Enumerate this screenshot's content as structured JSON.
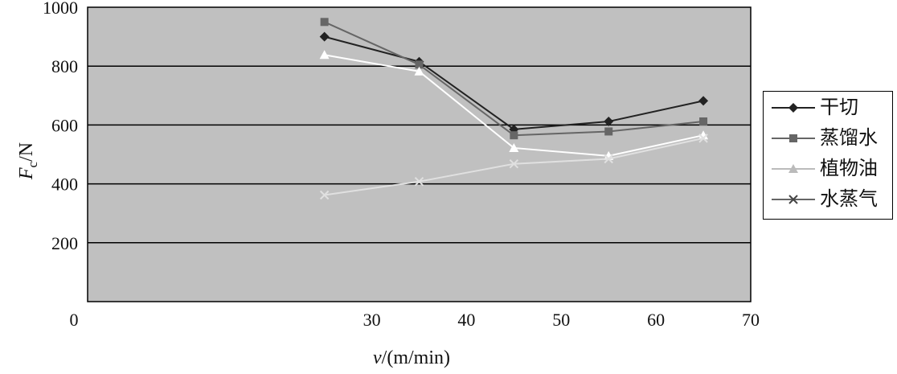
{
  "chart_data": {
    "type": "line",
    "x": [
      25,
      35,
      45,
      55,
      65
    ],
    "series": [
      {
        "name": "干切",
        "values": [
          900,
          815,
          585,
          612,
          682
        ],
        "color": "#222222",
        "marker": "diamond"
      },
      {
        "name": "蒸馏水",
        "values": [
          950,
          805,
          565,
          578,
          612
        ],
        "color": "#666666",
        "marker": "square"
      },
      {
        "name": "植物油",
        "values": [
          838,
          782,
          522,
          495,
          565
        ],
        "color": "#ffffff",
        "marker": "triangle"
      },
      {
        "name": "水蒸气",
        "values": [
          362,
          408,
          468,
          485,
          555
        ],
        "color": "#e0e0e0",
        "marker": "x"
      }
    ],
    "xlim": [
      0,
      70
    ],
    "ylim": [
      0,
      1000
    ],
    "xticks": [
      "0",
      "30",
      "40",
      "50",
      "60",
      "70"
    ],
    "yticks": [
      "200",
      "400",
      "600",
      "800",
      "1000"
    ],
    "ylabel_main": "F",
    "ylabel_sub": "c",
    "ylabel_unit": "/N",
    "xlabel_var": "v",
    "xlabel_unit": "/(m/min)",
    "grid": "horizontal",
    "legend_position": "right",
    "plot_background": "#c0c0c0"
  }
}
